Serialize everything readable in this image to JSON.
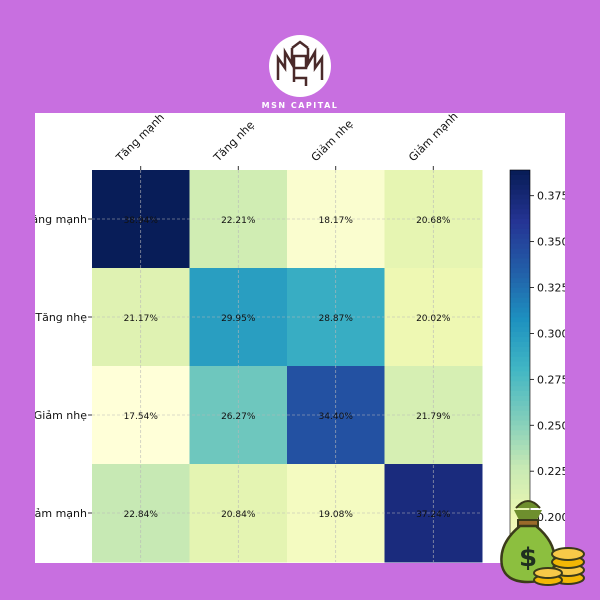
{
  "brand": {
    "name": "MSN CAPITAL",
    "logo_icon": "msn-monogram-logo"
  },
  "decoration": {
    "icon": "money-bag-coins-icon"
  },
  "chart_data": {
    "type": "heatmap",
    "title": "",
    "x_categories": [
      "Tăng mạnh",
      "Tăng nhẹ",
      "Giảm nhẹ",
      "Giảm mạnh"
    ],
    "y_categories": [
      "Tăng mạnh",
      "Tăng nhẹ",
      "Giảm nhẹ",
      "Giảm mạnh"
    ],
    "values": [
      [
        0.3894,
        0.2221,
        0.1817,
        0.2068
      ],
      [
        0.2117,
        0.2995,
        0.2887,
        0.2002
      ],
      [
        0.1754,
        0.2627,
        0.344,
        0.2179
      ],
      [
        0.2284,
        0.2084,
        0.1908,
        0.3724
      ]
    ],
    "cell_labels": [
      [
        "38.94%",
        "22.21%",
        "18.17%",
        "20.68%"
      ],
      [
        "21.17%",
        "29.95%",
        "28.87%",
        "20.02%"
      ],
      [
        "17.54%",
        "26.27%",
        "34.40%",
        "21.79%"
      ],
      [
        "22.84%",
        "20.84%",
        "19.08%",
        "37.24%"
      ]
    ],
    "colorscale": "YlGnBu",
    "color_range": [
      0.175,
      0.389
    ],
    "colorbar_ticks": [
      "0.375",
      "0.350",
      "0.325",
      "0.300",
      "0.275",
      "0.250",
      "0.225",
      "0.200"
    ],
    "grid": true
  }
}
